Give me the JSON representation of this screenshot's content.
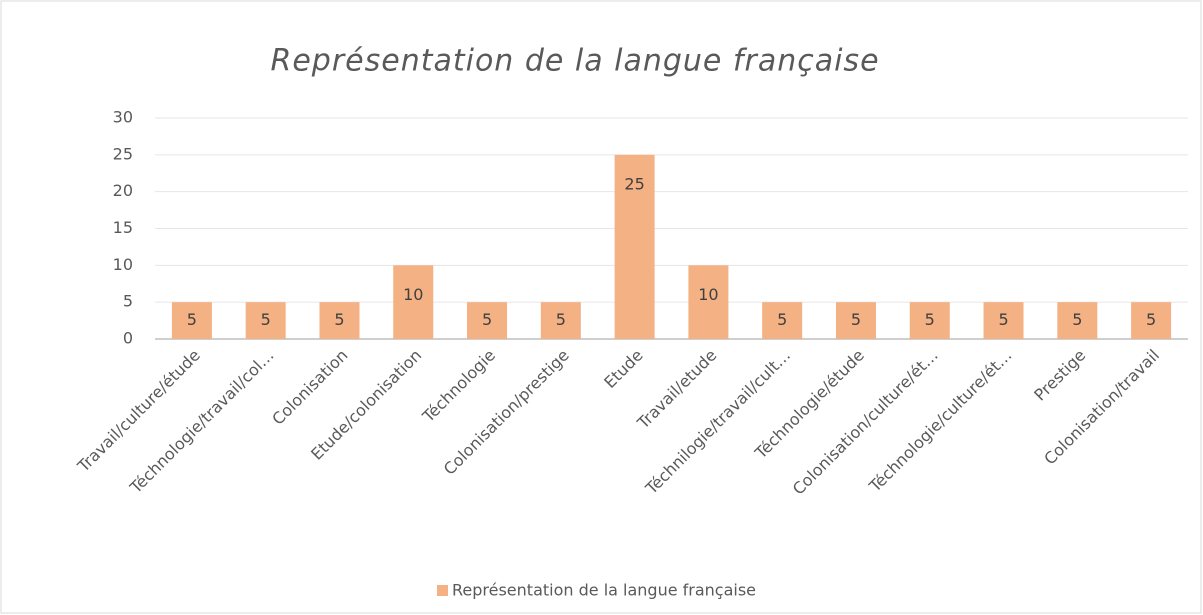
{
  "chart_data": {
    "type": "bar",
    "title": "Représentation de la langue française",
    "categories": [
      "Travail/culture/étude",
      "Téchnologie/travail/col…",
      "Colonisation",
      "Etude/colonisation",
      "Téchnologie",
      "Colonisation/prestige",
      "Etude",
      "Travail/etude",
      "Téchnilogie/travail/cult…",
      "Téchnologie/étude",
      "Colonisation/culture/ét…",
      "Téchnologie/culture/ét…",
      "Prestige",
      "Colonisation/travail"
    ],
    "series": [
      {
        "name": "Représentation de la langue française",
        "color": "#f4b183",
        "values": [
          5,
          5,
          5,
          10,
          5,
          5,
          25,
          10,
          5,
          5,
          5,
          5,
          5,
          5
        ]
      }
    ],
    "ylim": [
      0,
      30
    ],
    "yticks": [
      0,
      5,
      10,
      15,
      20,
      25,
      30
    ],
    "grid": true,
    "legend": "bottom"
  }
}
